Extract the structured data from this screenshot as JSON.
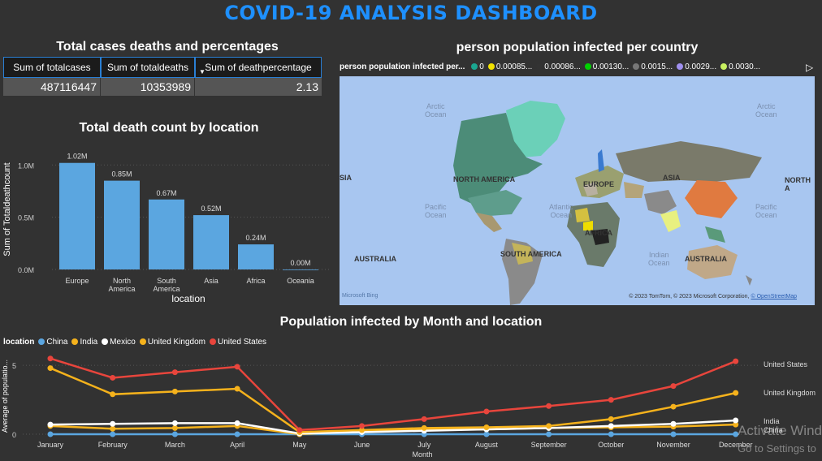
{
  "dashboard_title": "COVID-19 ANALYSIS DASHBOARD",
  "table": {
    "title": "Total cases deaths and percentages",
    "headers": [
      "Sum of totalcases",
      "Sum of totaldeaths",
      "Sum of deathpercentage"
    ],
    "values": [
      "487116447",
      "10353989",
      "2.13"
    ]
  },
  "map": {
    "title": "person population infected per country",
    "legend_title": "person population infected per...",
    "legend_items": [
      {
        "label": "0",
        "color": "#1aa690"
      },
      {
        "label": "0.00085...",
        "color": "#f2e200"
      },
      {
        "label": "0.00086...",
        "color": "#333333"
      },
      {
        "label": "0.00130...",
        "color": "#00d000"
      },
      {
        "label": "0.0015...",
        "color": "#777777"
      },
      {
        "label": "0.0029...",
        "color": "#a090f0"
      },
      {
        "label": "0.0030...",
        "color": "#c8f060"
      }
    ],
    "ocean_labels": [
      "Arctic\nOcean",
      "Arctic\nOcean",
      "Pacific\nOcean",
      "Atlantic\nOcean",
      "Pacific\nOcean",
      "Indian\nOcean"
    ],
    "continent_labels": [
      "NORTH AMERICA",
      "EUROPE",
      "ASIA",
      "NORTH A",
      "AFRICA",
      "SOUTH AMERICA",
      "AUSTRALIA",
      "AUSTRALIA",
      "SIA"
    ],
    "attribution": "© 2023 TomTom, © 2023 Microsoft Corporation,",
    "attribution_link": "© OpenStreetMap",
    "bing_label": "Microsoft Bing"
  },
  "chart_data": [
    {
      "type": "bar",
      "title": "Total death count by location",
      "xlabel": "location",
      "ylabel": "Sum of Totaldeathcount",
      "categories": [
        "Europe",
        "North America",
        "South America",
        "Asia",
        "Africa",
        "Oceania"
      ],
      "category_labels": [
        [
          "Europe"
        ],
        [
          "North",
          "America"
        ],
        [
          "South",
          "America"
        ],
        [
          "Asia"
        ],
        [
          "Africa"
        ],
        [
          "Oceania"
        ]
      ],
      "values": [
        1.02,
        0.85,
        0.67,
        0.52,
        0.24,
        0.0
      ],
      "data_labels": [
        "1.02M",
        "0.85M",
        "0.67M",
        "0.52M",
        "0.24M",
        "0.00M"
      ],
      "yticks": [
        "0.0M",
        "0.5M",
        "1.0M"
      ],
      "ytick_values": [
        0,
        0.5,
        1.0
      ],
      "ylim": [
        0,
        1.15
      ],
      "color": "#5ba6e0"
    },
    {
      "type": "line",
      "title": "Population infected by Month and location",
      "xlabel": "Month",
      "ylabel": "Average of populatio...",
      "legend_title": "location",
      "x": [
        "January",
        "February",
        "March",
        "April",
        "May",
        "June",
        "July",
        "August",
        "September",
        "October",
        "November",
        "December"
      ],
      "ylim": [
        0,
        5.6
      ],
      "yticks": [
        "0",
        "5"
      ],
      "ytick_values": [
        0,
        5
      ],
      "series": [
        {
          "name": "China",
          "color": "#5ba6e0",
          "values": [
            0.0,
            0.0,
            0.0,
            0.0,
            0.0,
            0.0,
            0.0,
            0.0,
            0.0,
            0.0,
            0.0,
            0.0
          ]
        },
        {
          "name": "India",
          "color": "#f5b21c",
          "values": [
            0.6,
            0.4,
            0.45,
            0.6,
            0.0,
            0.25,
            0.35,
            0.35,
            0.45,
            0.5,
            0.55,
            0.7
          ]
        },
        {
          "name": "Mexico",
          "color": "#ffffff",
          "values": [
            0.7,
            0.75,
            0.8,
            0.8,
            0.05,
            0.15,
            0.25,
            0.35,
            0.45,
            0.6,
            0.75,
            1.0
          ]
        },
        {
          "name": "United Kingdom",
          "color": "#f5b21c",
          "values": [
            4.8,
            2.9,
            3.1,
            3.3,
            0.15,
            0.3,
            0.45,
            0.5,
            0.6,
            1.1,
            2.0,
            3.0
          ]
        },
        {
          "name": "United States",
          "color": "#e8453c",
          "values": [
            5.5,
            4.1,
            4.5,
            4.9,
            0.3,
            0.6,
            1.1,
            1.65,
            2.05,
            2.5,
            3.5,
            5.3
          ]
        }
      ],
      "end_labels": [
        "United States",
        "United Kingdom",
        "India",
        "China"
      ]
    }
  ],
  "watermark": {
    "line1": "Activate Wind",
    "line2": "Go to Settings to"
  }
}
